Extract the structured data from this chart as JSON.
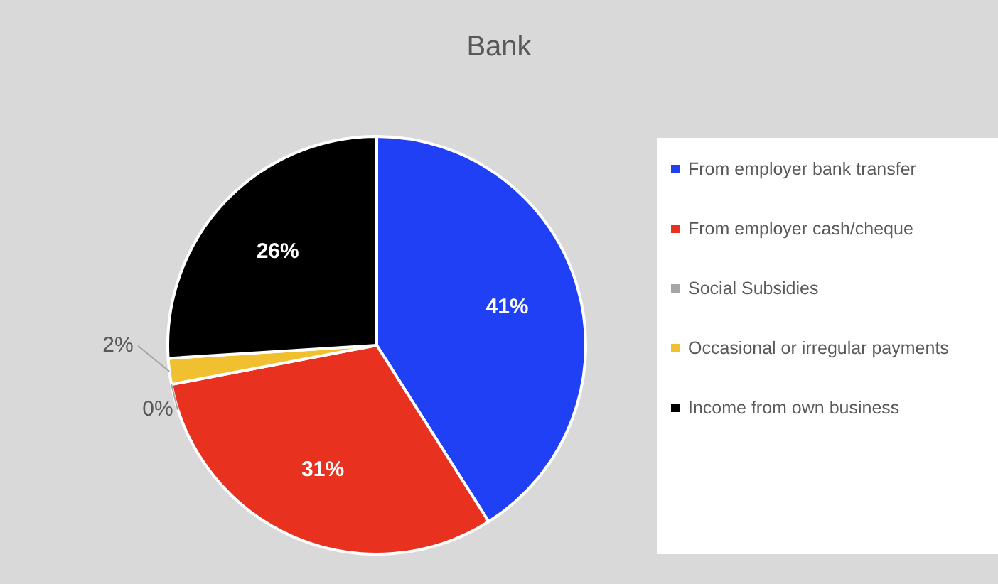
{
  "chart_data": {
    "type": "pie",
    "title": "Bank",
    "categories": [
      "From employer bank transfer",
      "From employer cash/cheque",
      "Social Subsidies",
      "Occasional or irregular payments",
      "Income from own business"
    ],
    "values": [
      41,
      31,
      0,
      2,
      26
    ],
    "colors": [
      "#1f40f5",
      "#e8311f",
      "#a6a6a6",
      "#f0c030",
      "#000000"
    ],
    "value_labels": [
      "41%",
      "31%",
      "0%",
      "2%",
      "26%"
    ],
    "legend": "right"
  }
}
